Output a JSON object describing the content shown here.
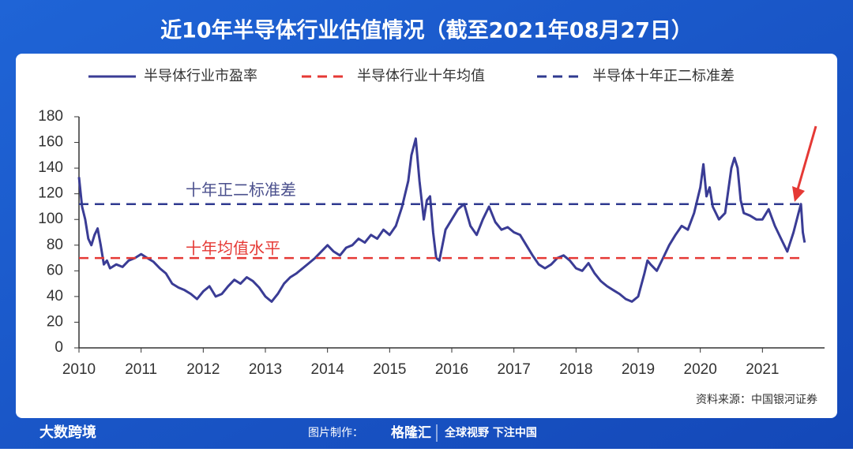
{
  "chart_data": {
    "type": "line",
    "title": "近10年半导体行业估值情况（截至2021年08月27日）",
    "xlim": [
      2010,
      2022
    ],
    "xticks": [
      2010,
      2011,
      2012,
      2013,
      2014,
      2015,
      2016,
      2017,
      2018,
      2019,
      2020,
      2021
    ],
    "ylim": [
      0,
      180
    ],
    "yticks": [
      0,
      20,
      40,
      60,
      80,
      100,
      120,
      140,
      160,
      180
    ],
    "grid": false,
    "legend": "top",
    "annotations": [
      {
        "text": "十年正二标准差",
        "color": "#4a4f8c"
      },
      {
        "text": "十年均值水平",
        "color": "#e53935"
      }
    ],
    "source": "资料来源：中国银河证券",
    "series": [
      {
        "name": "半导体行业市盈率",
        "color": "#3a3c95",
        "dashed": false,
        "x": [
          2010.0,
          2010.05,
          2010.1,
          2010.15,
          2010.2,
          2010.25,
          2010.3,
          2010.35,
          2010.4,
          2010.45,
          2010.5,
          2010.6,
          2010.7,
          2010.8,
          2010.9,
          2011.0,
          2011.1,
          2011.2,
          2011.3,
          2011.4,
          2011.5,
          2011.6,
          2011.7,
          2011.8,
          2011.9,
          2012.0,
          2012.1,
          2012.2,
          2012.3,
          2012.4,
          2012.5,
          2012.6,
          2012.7,
          2012.8,
          2012.9,
          2013.0,
          2013.1,
          2013.2,
          2013.3,
          2013.4,
          2013.5,
          2013.6,
          2013.7,
          2013.8,
          2013.9,
          2014.0,
          2014.1,
          2014.2,
          2014.3,
          2014.4,
          2014.5,
          2014.6,
          2014.7,
          2014.8,
          2014.9,
          2015.0,
          2015.1,
          2015.2,
          2015.3,
          2015.35,
          2015.42,
          2015.48,
          2015.55,
          2015.6,
          2015.65,
          2015.7,
          2015.75,
          2015.8,
          2015.9,
          2016.0,
          2016.1,
          2016.2,
          2016.3,
          2016.4,
          2016.5,
          2016.6,
          2016.7,
          2016.8,
          2016.9,
          2017.0,
          2017.1,
          2017.2,
          2017.3,
          2017.4,
          2017.5,
          2017.6,
          2017.7,
          2017.8,
          2017.9,
          2018.0,
          2018.1,
          2018.2,
          2018.3,
          2018.4,
          2018.5,
          2018.6,
          2018.7,
          2018.8,
          2018.9,
          2019.0,
          2019.1,
          2019.15,
          2019.2,
          2019.3,
          2019.4,
          2019.5,
          2019.6,
          2019.7,
          2019.8,
          2019.9,
          2020.0,
          2020.05,
          2020.1,
          2020.15,
          2020.2,
          2020.3,
          2020.4,
          2020.5,
          2020.55,
          2020.6,
          2020.65,
          2020.7,
          2020.8,
          2020.9,
          2021.0,
          2021.1,
          2021.2,
          2021.3,
          2021.4,
          2021.5,
          2021.58,
          2021.62,
          2021.65,
          2021.68
        ],
        "values": [
          133,
          110,
          100,
          85,
          80,
          88,
          93,
          80,
          65,
          68,
          62,
          65,
          63,
          68,
          70,
          73,
          70,
          67,
          62,
          58,
          50,
          47,
          45,
          42,
          38,
          44,
          48,
          40,
          42,
          48,
          53,
          50,
          55,
          52,
          47,
          40,
          36,
          42,
          50,
          55,
          58,
          62,
          66,
          70,
          75,
          80,
          75,
          72,
          78,
          80,
          85,
          82,
          88,
          85,
          92,
          88,
          95,
          110,
          130,
          150,
          163,
          130,
          100,
          115,
          118,
          90,
          70,
          68,
          92,
          100,
          108,
          112,
          95,
          88,
          100,
          110,
          98,
          92,
          94,
          90,
          88,
          80,
          72,
          65,
          62,
          65,
          70,
          72,
          68,
          62,
          60,
          66,
          58,
          52,
          48,
          45,
          42,
          38,
          36,
          40,
          58,
          68,
          65,
          60,
          70,
          80,
          88,
          95,
          92,
          105,
          125,
          143,
          118,
          125,
          110,
          100,
          105,
          140,
          148,
          140,
          115,
          105,
          103,
          100,
          100,
          108,
          95,
          85,
          75,
          90,
          105,
          112,
          90,
          82
        ]
      },
      {
        "name": "半导体行业十年均值",
        "color": "#e53935",
        "dashed": true,
        "x": [
          2010,
          2021.65
        ],
        "values": [
          70,
          70
        ]
      },
      {
        "name": "半导体十年正二标准差",
        "color": "#2f3a8f",
        "dashed": true,
        "x": [
          2010,
          2021.65
        ],
        "values": [
          112,
          112
        ]
      }
    ]
  },
  "footer": {
    "brand": "大数跨境",
    "credit_label": "图片制作：",
    "credit_name": "格隆汇",
    "slogan": "全球视野 下注中国"
  }
}
